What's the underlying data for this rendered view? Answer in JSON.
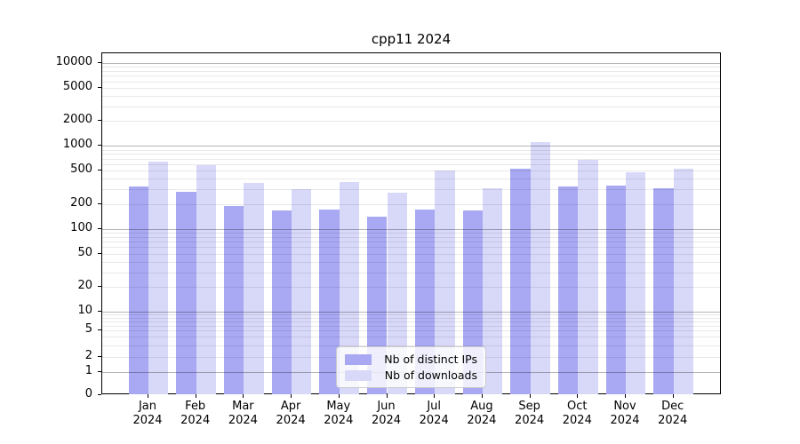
{
  "chart_data": {
    "type": "bar",
    "title": "cpp11 2024",
    "categories": [
      "Jan",
      "Feb",
      "Mar",
      "Apr",
      "May",
      "Jun",
      "Jul",
      "Aug",
      "Sep",
      "Oct",
      "Nov",
      "Dec"
    ],
    "year": "2024",
    "series": [
      {
        "name": "Nb of distinct IPs",
        "color": "#a8a8f3",
        "values": [
          324,
          280,
          190,
          167,
          172,
          139,
          171,
          168,
          527,
          322,
          335,
          311
        ]
      },
      {
        "name": "Nb of downloads",
        "color": "#d8d8f8",
        "values": [
          646,
          586,
          362,
          301,
          370,
          275,
          509,
          312,
          1120,
          679,
          483,
          535
        ]
      }
    ],
    "y_axis": {
      "scale": "symlog",
      "ticks": [
        0,
        1,
        2,
        5,
        10,
        20,
        50,
        100,
        200,
        500,
        1000,
        2000,
        5000,
        10000
      ],
      "range": [
        0,
        13000
      ]
    },
    "x_axis": {
      "tick_format": "month-over-year"
    },
    "legend": {
      "position": "lower center"
    },
    "grid": {
      "major_color": "#b5b5b5",
      "minor_color": "#e9e9e9"
    }
  }
}
